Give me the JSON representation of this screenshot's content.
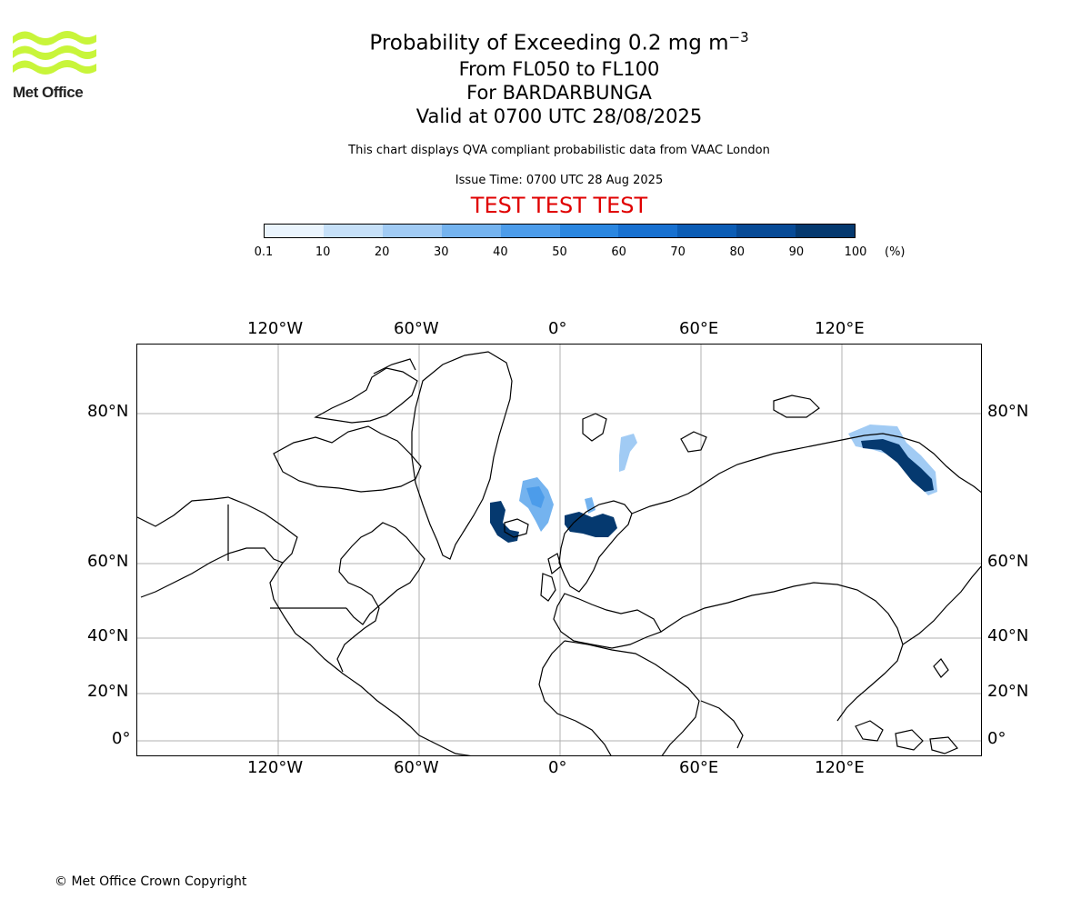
{
  "header": {
    "logo_text": "Met Office",
    "title_prefix": "Probability of Exceeding 0.2 mg m",
    "title_exp": "−3",
    "line2": "From FL050 to FL100",
    "line3": "For BARDARBUNGA",
    "line4": "Valid at 0700 UTC 28/08/2025",
    "description": "This chart displays QVA compliant probabilistic data from VAAC London",
    "issue_time": "Issue Time: 0700 UTC 28 Aug 2025",
    "test_banner": "TEST TEST TEST"
  },
  "colorbar": {
    "ticks": [
      "0.1",
      "10",
      "20",
      "30",
      "40",
      "50",
      "60",
      "70",
      "80",
      "90",
      "100"
    ],
    "unit": "(%)",
    "colors": [
      "#eaf4fd",
      "#c6e0f8",
      "#a1cbf4",
      "#74b3ef",
      "#4c9cea",
      "#2a86e0",
      "#1770d0",
      "#0b5cb5",
      "#074a96",
      "#05396f"
    ]
  },
  "map": {
    "lon_labels": [
      "120°W",
      "60°W",
      "0°",
      "60°E",
      "120°E"
    ],
    "lat_labels": [
      "80°N",
      "60°N",
      "40°N",
      "20°N",
      "0°"
    ],
    "gridline_color": "#b0b0b0",
    "ash_regions": [
      {
        "name": "greenland-east-coast",
        "probability_max": 100
      },
      {
        "name": "north-atlantic-iceland",
        "probability_max": 50
      },
      {
        "name": "scandinavia",
        "probability_max": 100
      },
      {
        "name": "barents-sea",
        "probability_max": 30
      },
      {
        "name": "east-siberia",
        "probability_max": 100
      }
    ]
  },
  "footer": {
    "copyright": "© Met Office Crown Copyright"
  }
}
